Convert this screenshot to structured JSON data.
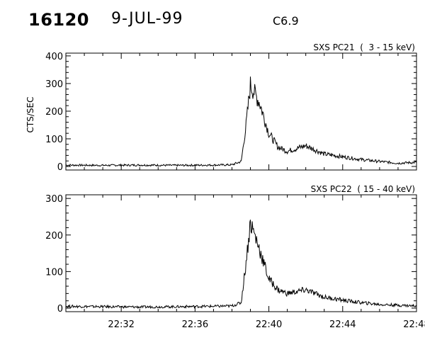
{
  "header": {
    "event_id": "16120",
    "date": "9-JUL-99",
    "flare_class": "C6.9"
  },
  "chart_data": [
    {
      "type": "line",
      "title": "SXS PC21  (  3 - 15 keV)",
      "ylabel": "CTS/SEC",
      "xlabel": "",
      "ylim": [
        0,
        410
      ],
      "yticks": [
        0,
        100,
        200,
        300,
        400
      ],
      "xlim": [
        "22:29",
        "22:48"
      ],
      "grid": false,
      "series": [
        {
          "x": [
            "22:29",
            "22:31",
            "22:33",
            "22:35",
            "22:37",
            "22:38",
            "22:38:30",
            "22:38:45",
            "22:39",
            "22:39:30",
            "22:40",
            "22:40:30",
            "22:41",
            "22:41:30",
            "22:42",
            "22:42:30",
            "22:43",
            "22:44",
            "22:45",
            "22:46",
            "22:47",
            "22:48"
          ],
          "values": [
            5,
            4,
            5,
            4,
            5,
            6,
            18,
            140,
            295,
            230,
            120,
            70,
            55,
            65,
            75,
            60,
            45,
            35,
            25,
            18,
            12,
            15
          ]
        }
      ]
    },
    {
      "type": "line",
      "title": "SXS PC22  ( 15 - 40 keV)",
      "ylabel": "",
      "xlabel": "",
      "ylim": [
        0,
        310
      ],
      "yticks": [
        0,
        100,
        200,
        300
      ],
      "xlim": [
        "22:29",
        "22:48"
      ],
      "xticks": [
        "22:32",
        "22:36",
        "22:40",
        "22:44",
        "22:48"
      ],
      "grid": false,
      "series": [
        {
          "x": [
            "22:29",
            "22:31",
            "22:33",
            "22:35",
            "22:37",
            "22:38",
            "22:38:30",
            "22:38:45",
            "22:39",
            "22:39:30",
            "22:40",
            "22:40:30",
            "22:41",
            "22:41:30",
            "22:42",
            "22:42:30",
            "22:43",
            "22:44",
            "22:45",
            "22:46",
            "22:47",
            "22:48"
          ],
          "values": [
            5,
            4,
            3,
            4,
            5,
            6,
            15,
            120,
            235,
            160,
            80,
            50,
            40,
            45,
            50,
            40,
            30,
            22,
            15,
            10,
            8,
            6
          ]
        }
      ]
    }
  ]
}
